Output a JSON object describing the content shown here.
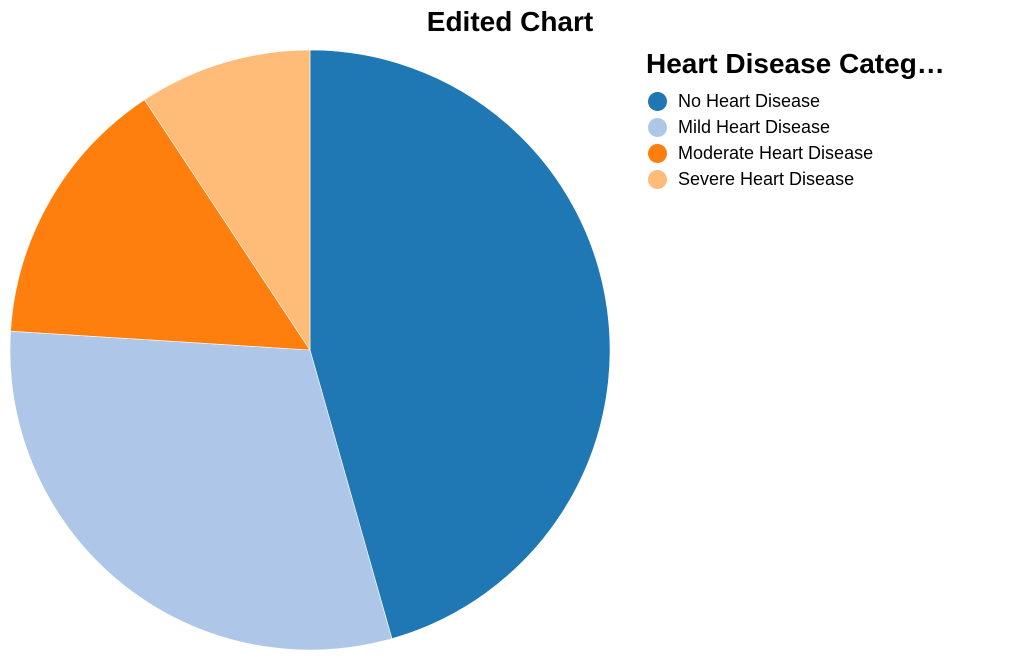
{
  "chart_data": {
    "type": "pie",
    "title": "Edited Chart",
    "legend_title": "Heart Disease Categ…",
    "legend_position": "top-right",
    "categories": [
      "No Heart Disease",
      "Mild Heart Disease",
      "Moderate Heart Disease",
      "Severe Heart Disease"
    ],
    "values": [
      45.6,
      30.4,
      14.7,
      9.3
    ],
    "colors": [
      "#1f77b4",
      "#aec7e8",
      "#ff7f0e",
      "#ffbb78"
    ]
  }
}
